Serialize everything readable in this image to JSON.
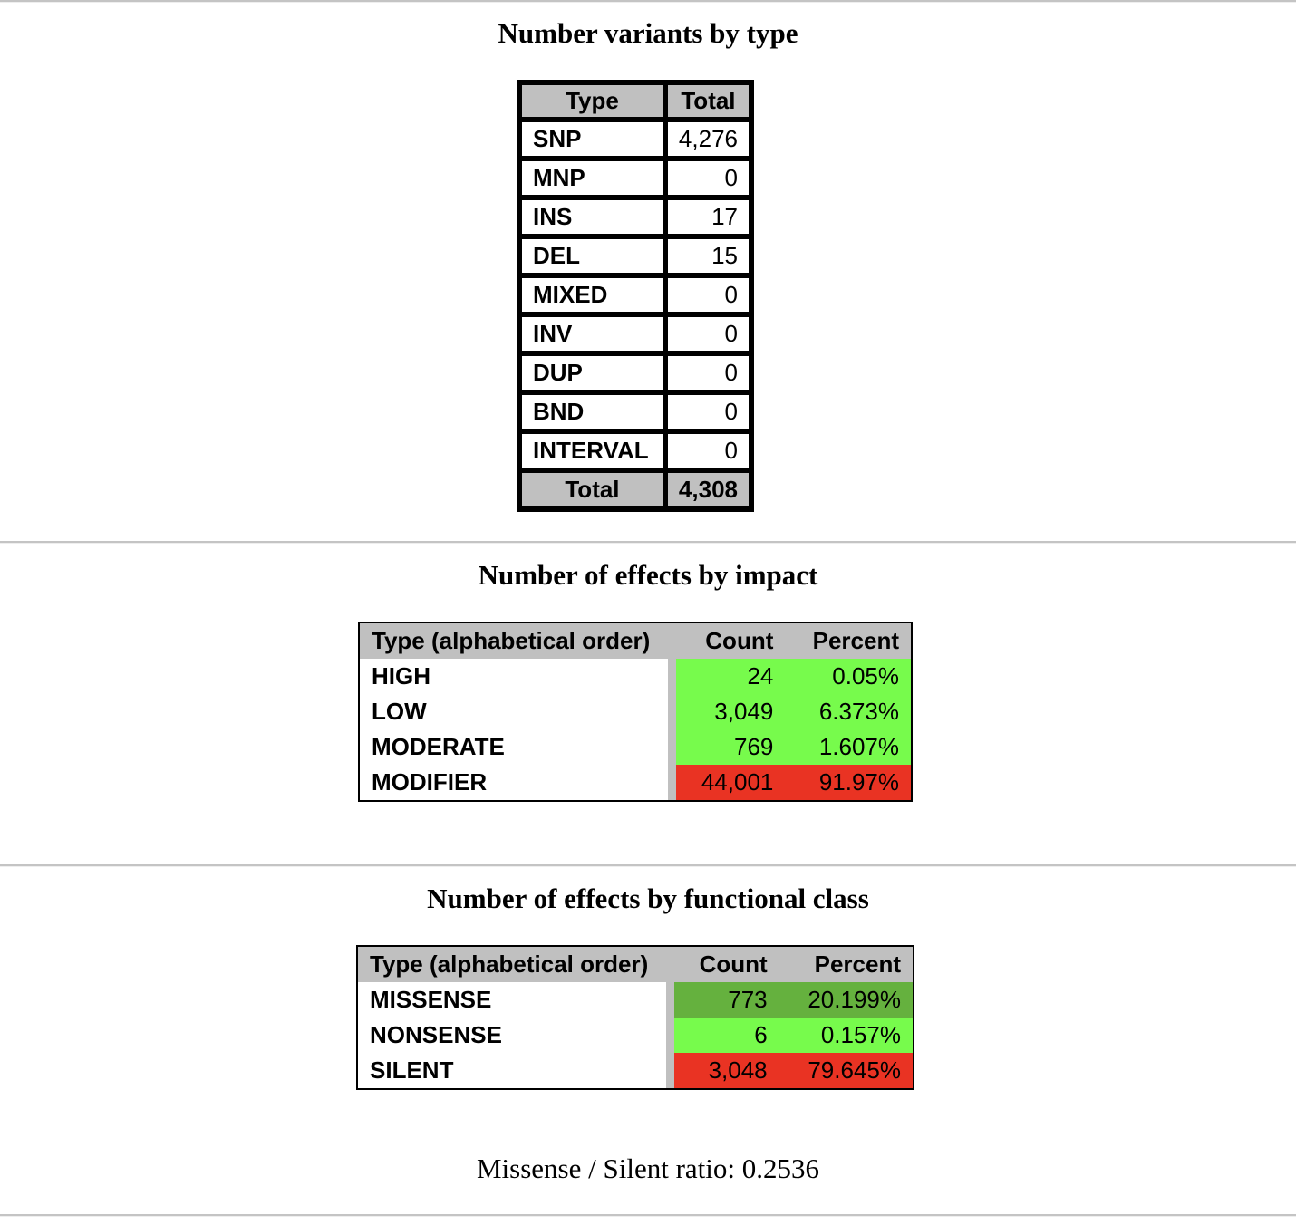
{
  "variants_by_type": {
    "title": "Number variants by type",
    "headers": [
      "Type",
      "Total"
    ],
    "rows": [
      {
        "type": "SNP",
        "total": "4,276",
        "color": "#e93323"
      },
      {
        "type": "MNP",
        "total": "0",
        "color": "#ffffff"
      },
      {
        "type": "INS",
        "total": "17",
        "color": "#77fb4c"
      },
      {
        "type": "DEL",
        "total": "15",
        "color": "#77fb4c"
      },
      {
        "type": "MIXED",
        "total": "0",
        "color": "#ffffff"
      },
      {
        "type": "INV",
        "total": "0",
        "color": "#ffffff"
      },
      {
        "type": "DUP",
        "total": "0",
        "color": "#ffffff"
      },
      {
        "type": "BND",
        "total": "0",
        "color": "#ffffff"
      },
      {
        "type": "INTERVAL",
        "total": "0",
        "color": "#ffffff"
      }
    ],
    "total_label": "Total",
    "total_value": "4,308"
  },
  "effects_by_impact": {
    "title": "Number of effects by impact",
    "headers": [
      "Type (alphabetical order)",
      "Count",
      "Percent"
    ],
    "rows": [
      {
        "type": "HIGH",
        "count": "24",
        "percent": "0.05%",
        "color": "#77fb4c"
      },
      {
        "type": "LOW",
        "count": "3,049",
        "percent": "6.373%",
        "color": "#77fb4c"
      },
      {
        "type": "MODERATE",
        "count": "769",
        "percent": "1.607%",
        "color": "#77fb4c"
      },
      {
        "type": "MODIFIER",
        "count": "44,001",
        "percent": "91.97%",
        "color": "#e93323"
      }
    ]
  },
  "effects_by_functional_class": {
    "title": "Number of effects by functional class",
    "headers": [
      "Type (alphabetical order)",
      "Count",
      "Percent"
    ],
    "rows": [
      {
        "type": "MISSENSE",
        "count": "773",
        "percent": "20.199%",
        "color": "#65b13e"
      },
      {
        "type": "NONSENSE",
        "count": "6",
        "percent": "0.157%",
        "color": "#77fb4c"
      },
      {
        "type": "SILENT",
        "count": "3,048",
        "percent": "79.645%",
        "color": "#e93323"
      }
    ],
    "ratio_text": "Missense / Silent ratio: 0.2536"
  }
}
